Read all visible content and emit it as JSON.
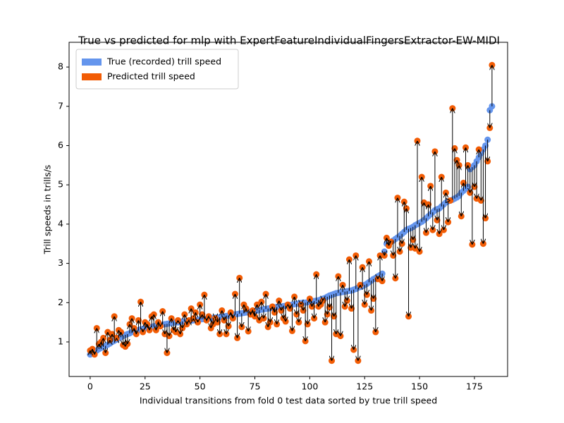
{
  "chart_data": {
    "type": "scatter",
    "title": "True vs predicted for mlp with ExpertFeatureIndividualFingersExtractor-EW-MIDI",
    "xlabel": "Individual transitions from fold 0 test data sorted by true trill speed",
    "ylabel": "Trill speeds in trills/s",
    "xlim": [
      -9.6,
      190.1
    ],
    "ylim": [
      0.12,
      8.63
    ],
    "xticks": [
      0,
      25,
      50,
      75,
      100,
      125,
      150,
      175
    ],
    "yticks": [
      1,
      2,
      3,
      4,
      5,
      6,
      7,
      8
    ],
    "legend": "upper left",
    "series": [
      {
        "name": "True (recorded) trill speed",
        "color": "#6495ed",
        "values": [
          0.68,
          0.72,
          0.75,
          0.78,
          0.82,
          0.85,
          0.88,
          0.9,
          0.93,
          0.96,
          1.0,
          1.03,
          1.06,
          1.1,
          1.12,
          1.15,
          1.18,
          1.2,
          1.22,
          1.25,
          1.27,
          1.29,
          1.3,
          1.32,
          1.33,
          1.35,
          1.36,
          1.37,
          1.38,
          1.4,
          1.41,
          1.42,
          1.43,
          1.44,
          1.45,
          1.46,
          1.47,
          1.48,
          1.49,
          1.5,
          1.5,
          1.51,
          1.52,
          1.52,
          1.53,
          1.54,
          1.54,
          1.55,
          1.56,
          1.56,
          1.57,
          1.58,
          1.58,
          1.59,
          1.6,
          1.6,
          1.61,
          1.62,
          1.62,
          1.63,
          1.64,
          1.65,
          1.66,
          1.67,
          1.68,
          1.69,
          1.7,
          1.71,
          1.72,
          1.73,
          1.74,
          1.75,
          1.76,
          1.77,
          1.78,
          1.79,
          1.8,
          1.81,
          1.82,
          1.83,
          1.84,
          1.85,
          1.86,
          1.87,
          1.88,
          1.89,
          1.9,
          1.9,
          1.91,
          1.92,
          1.93,
          1.94,
          1.95,
          1.96,
          1.97,
          1.98,
          1.99,
          2.0,
          2.0,
          2.01,
          2.02,
          2.03,
          2.04,
          2.05,
          2.06,
          2.08,
          2.1,
          2.12,
          2.15,
          2.18,
          2.2,
          2.22,
          2.24,
          2.25,
          2.26,
          2.27,
          2.28,
          2.29,
          2.3,
          2.31,
          2.33,
          2.35,
          2.38,
          2.4,
          2.42,
          2.45,
          2.48,
          2.52,
          2.56,
          2.6,
          2.63,
          2.67,
          2.7,
          2.74,
          3.3,
          3.5,
          3.52,
          3.55,
          3.58,
          3.62,
          3.66,
          3.7,
          3.75,
          3.8,
          3.85,
          3.88,
          3.9,
          3.93,
          3.97,
          4.0,
          4.03,
          4.06,
          4.1,
          4.15,
          4.2,
          4.25,
          4.3,
          4.35,
          4.38,
          4.4,
          4.45,
          4.5,
          4.55,
          4.58,
          4.6,
          4.62,
          4.65,
          4.68,
          4.72,
          4.8,
          4.85,
          4.9,
          4.95,
          5.4,
          5.45,
          5.5,
          5.6,
          5.7,
          5.8,
          5.9,
          6.0,
          6.15,
          6.9,
          7.0
        ]
      },
      {
        "name": "Predicted trill speed",
        "color": "#f25c05",
        "values": [
          0.78,
          0.82,
          0.68,
          1.35,
          0.95,
          1.0,
          1.1,
          0.72,
          1.25,
          1.05,
          1.2,
          1.65,
          1.1,
          1.3,
          1.25,
          0.92,
          0.88,
          0.95,
          1.45,
          1.6,
          1.35,
          1.2,
          1.55,
          2.02,
          1.25,
          1.5,
          1.45,
          1.3,
          1.65,
          1.7,
          1.3,
          1.5,
          1.4,
          1.78,
          1.2,
          0.72,
          1.15,
          1.6,
          1.3,
          1.25,
          1.55,
          1.2,
          1.35,
          1.7,
          1.45,
          1.55,
          1.85,
          1.6,
          1.75,
          1.5,
          1.95,
          1.7,
          2.2,
          1.55,
          1.65,
          1.35,
          1.45,
          1.6,
          1.5,
          1.2,
          1.8,
          1.55,
          1.2,
          1.4,
          1.75,
          1.6,
          2.22,
          1.1,
          2.63,
          1.38,
          1.95,
          1.85,
          1.27,
          1.7,
          1.8,
          1.65,
          1.95,
          1.55,
          2.02,
          1.6,
          2.22,
          1.38,
          1.5,
          1.9,
          1.75,
          1.45,
          2.05,
          1.8,
          1.6,
          1.52,
          1.95,
          1.85,
          1.28,
          2.15,
          1.7,
          1.5,
          1.95,
          1.8,
          1.02,
          1.45,
          2.1,
          1.9,
          1.6,
          2.72,
          1.9,
          1.95,
          2.05,
          1.5,
          1.7,
          1.88,
          0.52,
          1.65,
          1.2,
          2.67,
          1.15,
          2.45,
          1.9,
          2.05,
          3.1,
          1.85,
          0.8,
          3.2,
          0.52,
          2.45,
          2.9,
          1.95,
          2.2,
          3.05,
          1.8,
          2.1,
          1.25,
          2.6,
          3.2,
          2.55,
          3.2,
          3.65,
          3.45,
          3.55,
          3.2,
          2.62,
          4.67,
          3.3,
          3.5,
          4.57,
          4.4,
          1.65,
          3.4,
          3.6,
          3.38,
          6.12,
          3.3,
          5.2,
          4.55,
          3.78,
          4.5,
          4.97,
          3.85,
          5.85,
          4.1,
          3.75,
          5.2,
          3.85,
          4.8,
          4.05,
          4.6,
          6.95,
          5.93,
          5.63,
          5.5,
          4.2,
          5.05,
          5.95,
          5.5,
          4.8,
          3.48,
          4.95,
          4.65,
          5.9,
          4.6,
          3.5,
          4.15,
          5.6,
          6.45,
          8.05
        ]
      }
    ]
  }
}
